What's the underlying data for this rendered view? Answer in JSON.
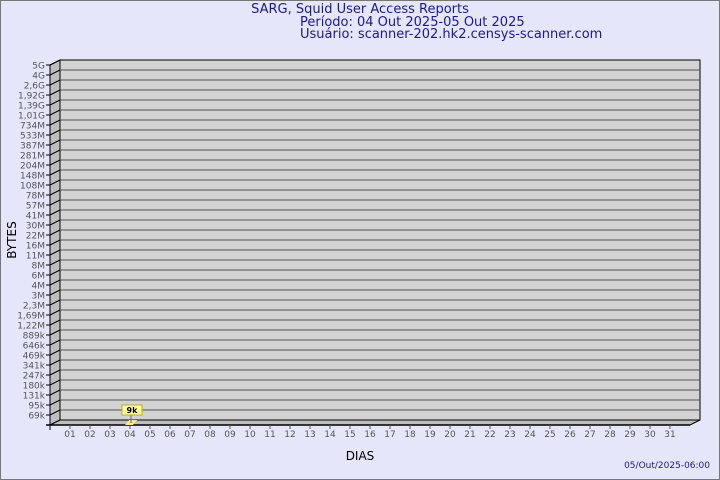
{
  "header": {
    "title": "SARG, Squid User Access Reports",
    "period": "Período: 04 Out 2025-05 Out 2025",
    "user": "Usuário: scanner-202.hk2.censys-scanner.com"
  },
  "footer": {
    "timestamp": "05/Out/2025-06:00"
  },
  "colors": {
    "background": "#e6e6fa",
    "plot": "#d3d3d3",
    "wall": "#bebebe",
    "text": "#1a1a8c",
    "bar": "#ffe680"
  },
  "chart_data": {
    "type": "bar",
    "title": "",
    "xlabel": "DIAS",
    "ylabel": "BYTES",
    "y_scale": "log",
    "y_ticks": [
      "5G",
      "4G",
      "2,6G",
      "1,92G",
      "1,39G",
      "1,01G",
      "734M",
      "533M",
      "387M",
      "281M",
      "204M",
      "148M",
      "108M",
      "78M",
      "57M",
      "41M",
      "30M",
      "22M",
      "16M",
      "11M",
      "8M",
      "6M",
      "4M",
      "3M",
      "2,3M",
      "1,69M",
      "1,22M",
      "889k",
      "646k",
      "469k",
      "341k",
      "247k",
      "180k",
      "131k",
      "95k",
      "69k"
    ],
    "categories": [
      "01",
      "02",
      "03",
      "04",
      "05",
      "06",
      "07",
      "08",
      "09",
      "10",
      "11",
      "12",
      "13",
      "14",
      "15",
      "16",
      "17",
      "18",
      "19",
      "20",
      "21",
      "22",
      "23",
      "24",
      "25",
      "26",
      "27",
      "28",
      "29",
      "30",
      "31"
    ],
    "series": [
      {
        "values": [
          null,
          null,
          null,
          9000,
          null,
          null,
          null,
          null,
          null,
          null,
          null,
          null,
          null,
          null,
          null,
          null,
          null,
          null,
          null,
          null,
          null,
          null,
          null,
          null,
          null,
          null,
          null,
          null,
          null,
          null,
          null
        ]
      }
    ],
    "data_labels": [
      {
        "category": "04",
        "label": "9k"
      }
    ],
    "grid": true
  }
}
